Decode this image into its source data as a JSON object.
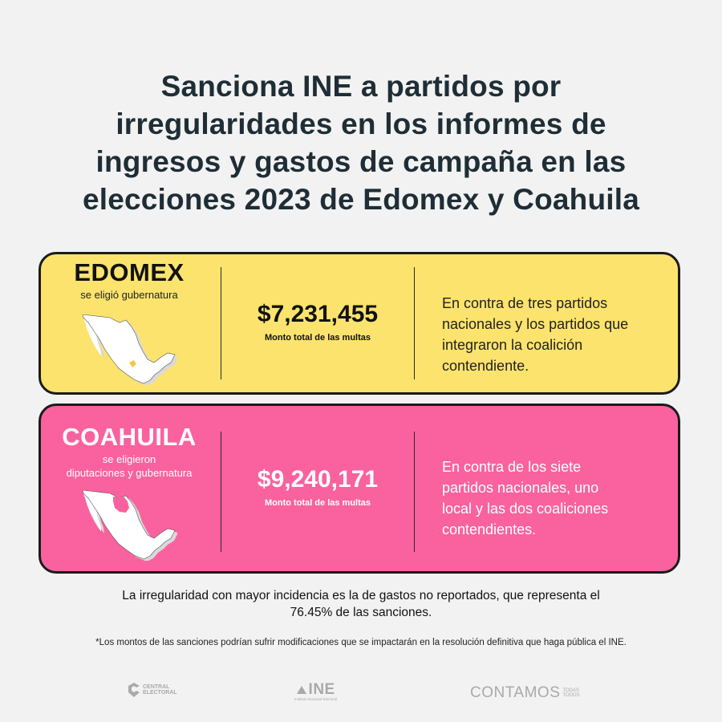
{
  "title": {
    "line1": "Sanciona INE a partidos por",
    "line2": "irregularidades en los informes de",
    "line3": "ingresos y gastos de campaña en las",
    "line4": "elecciones 2023 de Edomex y Coahuila"
  },
  "cards": [
    {
      "state": "EDOMEX",
      "subtitle_lines": [
        "se eligió gubernatura"
      ],
      "amount": "$7,231,455",
      "amount_label": "Monto total de las multas",
      "description_lines": [
        "En contra de tres partidos",
        "nacionales y los partidos que",
        "integraron la coalición",
        "contendiente."
      ],
      "bg_color": "#fbe36d",
      "highlight_color": "#f2c84a",
      "icon": "mexico-map-icon"
    },
    {
      "state": "COAHUILA",
      "subtitle_lines": [
        "se eligieron",
        "diputaciones y gubernatura"
      ],
      "amount": "$9,240,171",
      "amount_label": "Monto total de las multas",
      "description_lines": [
        "En contra de los siete",
        "partidos nacionales, uno",
        "local y las dos coaliciones",
        "contendientes."
      ],
      "bg_color": "#f9629e",
      "highlight_color": "#f9629e",
      "icon": "mexico-map-icon"
    }
  ],
  "summary": {
    "line1": "La irregularidad con mayor incidencia es la de gastos no reportados, que representa el",
    "line2": "76.45% de las sanciones."
  },
  "footnote": "*Los montos de las sanciones podrían sufrir modificaciones que se impactarán en la resolución definitiva que haga pública el INE.",
  "logos": {
    "central": {
      "line1": "CENTRAL",
      "line2": "ELECTORAL"
    },
    "ine": {
      "big": "INE",
      "small": "Instituto Nacional Electoral"
    },
    "contamos": {
      "big": "CONTAMOS",
      "small1": "TODAS",
      "small2": "TODOS"
    }
  }
}
